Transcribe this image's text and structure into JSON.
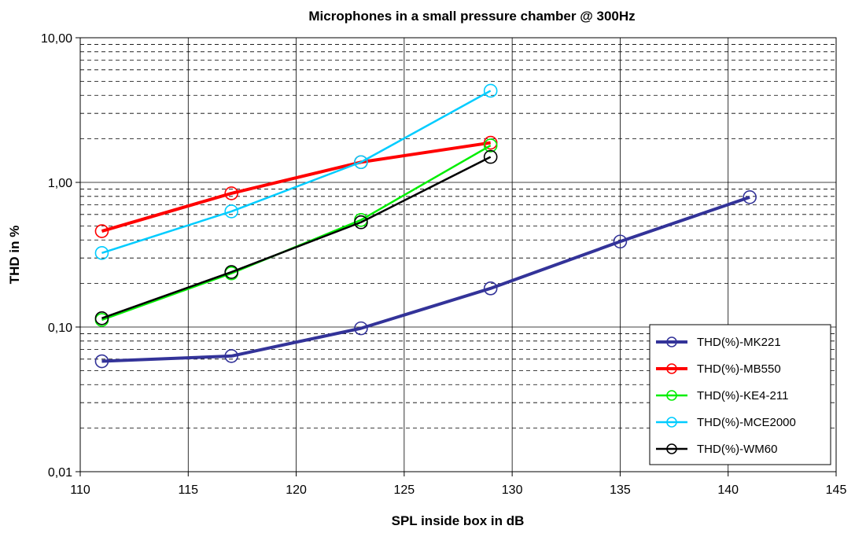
{
  "chart_data": {
    "type": "line",
    "title": "Microphones in a small pressure chamber @ 300Hz",
    "xlabel": "SPL inside box in dB",
    "ylabel": "THD in %",
    "xlim": [
      110,
      145
    ],
    "ylim": [
      0.01,
      10
    ],
    "yscale": "log",
    "grid": true,
    "legend_position": "bottom-right",
    "x_ticks": [
      110,
      115,
      120,
      125,
      130,
      135,
      140,
      145
    ],
    "x_tick_labels": [
      "110",
      "115",
      "120",
      "125",
      "130",
      "135",
      "140",
      "145"
    ],
    "y_ticks": [
      0.01,
      0.1,
      1,
      10
    ],
    "y_tick_labels": [
      "0,01",
      "0,10",
      "1,00",
      "10,00"
    ],
    "series": [
      {
        "name": "THD(%)-MK221",
        "color": "#333399",
        "x": [
          111,
          117,
          123,
          129,
          135,
          141
        ],
        "y": [
          0.058,
          0.063,
          0.098,
          0.185,
          0.39,
          0.79
        ]
      },
      {
        "name": "THD(%)-MB550",
        "color": "#ff0000",
        "x": [
          111,
          117,
          123,
          129
        ],
        "y": [
          0.46,
          0.84,
          1.38,
          1.88
        ]
      },
      {
        "name": "THD(%)-KE4-211",
        "color": "#00ee00",
        "x": [
          111,
          117,
          123,
          129
        ],
        "y": [
          0.112,
          0.235,
          0.55,
          1.8
        ]
      },
      {
        "name": "THD(%)-MCE2000",
        "color": "#00ccff",
        "x": [
          111,
          117,
          123,
          129
        ],
        "y": [
          0.325,
          0.63,
          1.38,
          4.3
        ]
      },
      {
        "name": "THD(%)-WM60",
        "color": "#000000",
        "x": [
          111,
          117,
          123,
          129
        ],
        "y": [
          0.115,
          0.24,
          0.53,
          1.5
        ]
      }
    ]
  }
}
